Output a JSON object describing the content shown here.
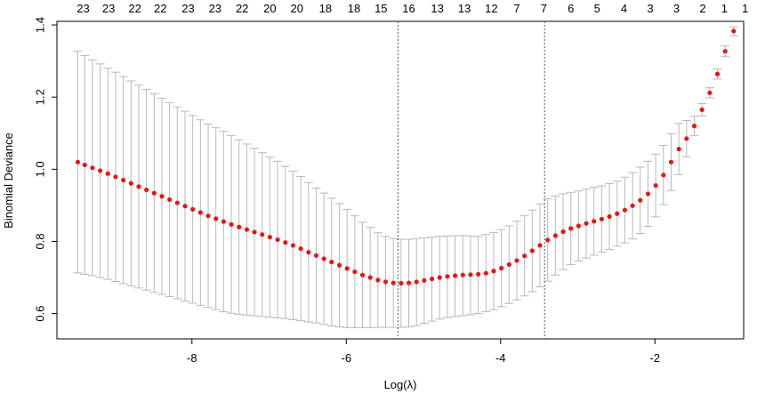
{
  "chart_data": {
    "type": "scatter",
    "title": "",
    "xlabel": "Log(λ)",
    "ylabel": "Binomial Deviance",
    "xlim": [
      -9.75,
      -0.85
    ],
    "ylim": [
      0.53,
      1.41
    ],
    "xticks": [
      -8,
      -6,
      -4,
      -2
    ],
    "yticks": [
      0.6,
      0.8,
      1.0,
      1.2,
      1.4
    ],
    "top_axis": {
      "labels": [
        "23",
        "23",
        "22",
        "22",
        "23",
        "23",
        "22",
        "20",
        "20",
        "18",
        "18",
        "15",
        "16",
        "13",
        "13",
        "12",
        "7",
        "7",
        "6",
        "5",
        "4",
        "3",
        "3",
        "2",
        "1",
        "1"
      ],
      "x": [
        -9.41,
        -9.08,
        -8.74,
        -8.41,
        -8.05,
        -7.7,
        -7.35,
        -6.99,
        -6.64,
        -6.27,
        -5.9,
        -5.55,
        -5.19,
        -4.82,
        -4.47,
        -4.12,
        -3.79,
        -3.44,
        -3.09,
        -2.75,
        -2.4,
        -2.06,
        -1.72,
        -1.38,
        -1.1,
        -0.83
      ]
    },
    "vlines": [
      -5.33,
      -3.43
    ],
    "grid": false,
    "series": [
      {
        "x": [
          -9.48,
          -9.39,
          -9.29,
          -9.19,
          -9.09,
          -8.99,
          -8.89,
          -8.79,
          -8.69,
          -8.59,
          -8.49,
          -8.39,
          -8.29,
          -8.19,
          -8.09,
          -7.99,
          -7.89,
          -7.79,
          -7.69,
          -7.59,
          -7.49,
          -7.39,
          -7.29,
          -7.19,
          -7.09,
          -6.99,
          -6.89,
          -6.79,
          -6.69,
          -6.59,
          -6.49,
          -6.39,
          -6.29,
          -6.19,
          -6.09,
          -5.99,
          -5.89,
          -5.79,
          -5.69,
          -5.59,
          -5.49,
          -5.39,
          -5.29,
          -5.19,
          -5.09,
          -4.99,
          -4.89,
          -4.79,
          -4.69,
          -4.59,
          -4.49,
          -4.39,
          -4.29,
          -4.19,
          -4.09,
          -3.99,
          -3.89,
          -3.79,
          -3.69,
          -3.59,
          -3.49,
          -3.39,
          -3.29,
          -3.19,
          -3.09,
          -2.99,
          -2.89,
          -2.79,
          -2.69,
          -2.59,
          -2.49,
          -2.39,
          -2.29,
          -2.19,
          -2.09,
          -1.99,
          -1.89,
          -1.79,
          -1.69,
          -1.59,
          -1.49,
          -1.39,
          -1.29,
          -1.19
        ],
        "y": [
          1.02,
          1.012,
          1.004,
          0.996,
          0.988,
          0.979,
          0.97,
          0.961,
          0.952,
          0.943,
          0.934,
          0.925,
          0.916,
          0.907,
          0.898,
          0.889,
          0.88,
          0.871,
          0.863,
          0.855,
          0.847,
          0.84,
          0.833,
          0.826,
          0.819,
          0.812,
          0.805,
          0.797,
          0.789,
          0.78,
          0.77,
          0.761,
          0.752,
          0.743,
          0.734,
          0.725,
          0.716,
          0.707,
          0.7,
          0.693,
          0.688,
          0.685,
          0.684,
          0.685,
          0.688,
          0.692,
          0.696,
          0.7,
          0.703,
          0.705,
          0.707,
          0.708,
          0.709,
          0.712,
          0.718,
          0.726,
          0.736,
          0.747,
          0.76,
          0.774,
          0.789,
          0.804,
          0.816,
          0.827,
          0.836,
          0.843,
          0.85,
          0.856,
          0.862,
          0.869,
          0.877,
          0.887,
          0.899,
          0.914,
          0.932,
          0.955,
          0.984,
          1.02,
          1.056,
          1.085,
          1.12,
          1.165,
          1.212,
          1.264
        ],
        "lower": [
          0.713,
          0.709,
          0.705,
          0.7,
          0.695,
          0.689,
          0.683,
          0.677,
          0.671,
          0.665,
          0.659,
          0.653,
          0.647,
          0.641,
          0.635,
          0.629,
          0.623,
          0.617,
          0.611,
          0.605,
          0.601,
          0.598,
          0.596,
          0.594,
          0.592,
          0.59,
          0.588,
          0.586,
          0.583,
          0.58,
          0.577,
          0.574,
          0.57,
          0.566,
          0.563,
          0.561,
          0.561,
          0.561,
          0.561,
          0.562,
          0.562,
          0.562,
          0.562,
          0.563,
          0.567,
          0.573,
          0.579,
          0.585,
          0.589,
          0.592,
          0.594,
          0.597,
          0.6,
          0.605,
          0.611,
          0.619,
          0.628,
          0.638,
          0.649,
          0.661,
          0.674,
          0.69,
          0.707,
          0.722,
          0.736,
          0.746,
          0.754,
          0.762,
          0.77,
          0.778,
          0.787,
          0.796,
          0.807,
          0.822,
          0.842,
          0.868,
          0.902,
          0.941,
          0.985,
          1.035,
          1.093,
          1.148,
          1.198,
          1.25
        ],
        "upper": [
          1.327,
          1.315,
          1.303,
          1.292,
          1.28,
          1.269,
          1.257,
          1.245,
          1.233,
          1.221,
          1.209,
          1.197,
          1.185,
          1.173,
          1.161,
          1.149,
          1.137,
          1.125,
          1.115,
          1.105,
          1.093,
          1.082,
          1.07,
          1.058,
          1.046,
          1.034,
          1.022,
          1.008,
          0.995,
          0.98,
          0.963,
          0.948,
          0.934,
          0.92,
          0.905,
          0.889,
          0.871,
          0.853,
          0.839,
          0.824,
          0.814,
          0.808,
          0.806,
          0.806,
          0.808,
          0.81,
          0.812,
          0.814,
          0.815,
          0.816,
          0.816,
          0.815,
          0.814,
          0.819,
          0.825,
          0.833,
          0.843,
          0.856,
          0.871,
          0.887,
          0.904,
          0.918,
          0.926,
          0.932,
          0.936,
          0.94,
          0.945,
          0.95,
          0.954,
          0.96,
          0.967,
          0.978,
          0.991,
          1.006,
          1.022,
          1.042,
          1.066,
          1.098,
          1.127,
          1.135,
          1.147,
          1.182,
          1.226,
          1.278
        ]
      }
    ],
    "extra_points": {
      "x": [
        -1.09
      ],
      "y": [
        1.327
      ],
      "lower": [
        1.312
      ],
      "upper": [
        1.342
      ]
    },
    "extra_points_2": {
      "x": [
        -0.98
      ],
      "y": [
        1.383
      ],
      "lower": [
        1.37
      ],
      "upper": [
        1.395
      ]
    },
    "colors": {
      "point": "#e3171a",
      "errorbar": "#b8b8b8",
      "vline": "#555555",
      "axis": "#000000"
    }
  }
}
